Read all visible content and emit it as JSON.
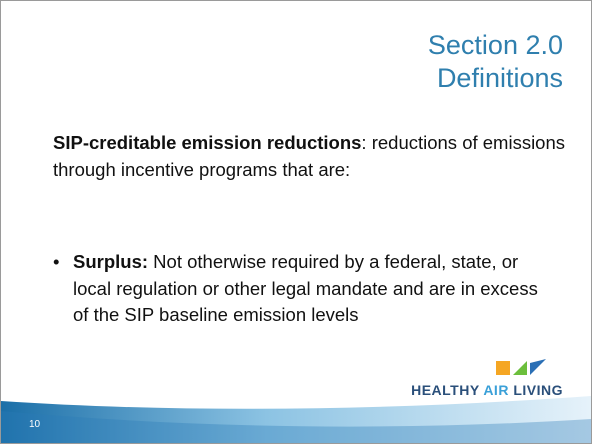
{
  "slide": {
    "title": [
      "Section 2.0",
      "Definitions"
    ],
    "intro": {
      "term": "SIP-creditable emission reductions",
      "text": ": reductions of emissions through incentive programs that are:"
    },
    "bullets": [
      {
        "term": "Surplus:",
        "text": " Not otherwise required by a federal, state, or local regulation or other legal mandate and are in excess of the SIP baseline emission levels"
      }
    ],
    "page_number": "10",
    "logo": {
      "parts": [
        "HEALTHY",
        "AIR",
        "LIVING"
      ]
    }
  }
}
